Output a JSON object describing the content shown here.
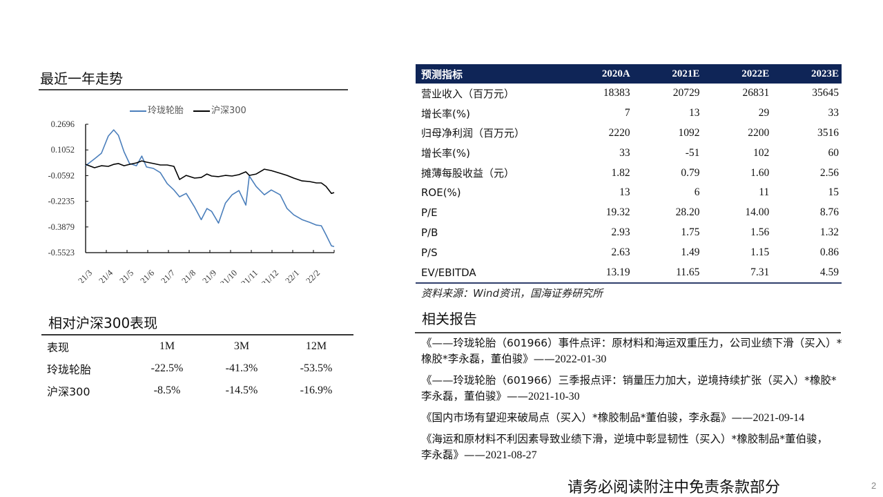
{
  "left": {
    "trend_title": "最近一年走势",
    "legend": [
      {
        "name": "玲珑轮胎",
        "color": "#4a7ebb"
      },
      {
        "name": "沪深300",
        "color": "#000000"
      }
    ],
    "perf_title": "相对沪深300表现",
    "perf_table": {
      "headers": [
        "表现",
        "1M",
        "3M",
        "12M"
      ],
      "rows": [
        {
          "label": "玲珑轮胎",
          "values": [
            "-22.5%",
            "-41.3%",
            "-53.5%"
          ]
        },
        {
          "label": "沪深300",
          "values": [
            "-8.5%",
            "-14.5%",
            "-16.9%"
          ]
        }
      ]
    }
  },
  "chart_data": {
    "type": "line",
    "title": "最近一年走势",
    "xlabel": "",
    "ylabel": "",
    "yticks": [
      0.2696,
      0.1052,
      -0.0592,
      -0.2235,
      -0.3879,
      -0.5523
    ],
    "ylim": [
      -0.5523,
      0.2696
    ],
    "xtick_labels": [
      "21/3",
      "21/4",
      "21/5",
      "21/6",
      "21/7",
      "21/8",
      "21/9",
      "21/10",
      "21/11",
      "21/12",
      "22/1",
      "22/2"
    ],
    "legend_position": "top",
    "grid": false,
    "x": [
      0,
      0.36,
      0.64,
      0.92,
      1.14,
      1.33,
      1.56,
      1.78,
      2.06,
      2.28,
      2.47,
      2.75,
      3.03,
      3.31,
      3.58,
      3.81,
      4.08,
      4.42,
      4.69,
      4.92,
      5.11,
      5.39,
      5.67,
      5.94,
      6.22,
      6.5,
      6.64,
      6.92,
      7.25,
      7.53,
      7.89,
      8.17,
      8.44,
      8.78,
      9.08,
      9.36,
      9.56,
      9.75,
      9.97,
      10.08
    ],
    "series": [
      {
        "name": "玲珑轮胎",
        "color": "#4a7ebb",
        "values": [
          0.004,
          0.048,
          0.084,
          0.194,
          0.234,
          0.199,
          0.093,
          0.018,
          0.004,
          0.066,
          -0.004,
          -0.013,
          -0.04,
          -0.111,
          -0.151,
          -0.195,
          -0.173,
          -0.261,
          -0.341,
          -0.27,
          -0.288,
          -0.363,
          -0.235,
          -0.182,
          -0.155,
          -0.248,
          -0.062,
          -0.129,
          -0.182,
          -0.151,
          -0.182,
          -0.27,
          -0.31,
          -0.341,
          -0.358,
          -0.376,
          -0.38,
          -0.438,
          -0.509,
          -0.513
        ]
      },
      {
        "name": "沪深300",
        "color": "#000000",
        "values": [
          0.013,
          -0.009,
          0.004,
          0.0,
          0.013,
          0.018,
          0.004,
          0.013,
          0.022,
          0.035,
          0.027,
          0.018,
          0.009,
          0.009,
          -0.0,
          -0.084,
          -0.058,
          -0.075,
          -0.071,
          -0.049,
          -0.062,
          -0.066,
          -0.058,
          -0.062,
          -0.053,
          -0.035,
          -0.058,
          -0.049,
          -0.018,
          -0.027,
          -0.044,
          -0.058,
          -0.075,
          -0.093,
          -0.097,
          -0.106,
          -0.106,
          -0.128,
          -0.173,
          -0.168
        ]
      }
    ]
  },
  "forecast": {
    "headers": [
      "预测指标",
      "2020A",
      "2021E",
      "2022E",
      "2023E"
    ],
    "header_bg": "#0f2557",
    "rows": [
      {
        "label": "营业收入（百万元）",
        "values": [
          "18383",
          "20729",
          "26831",
          "35645"
        ]
      },
      {
        "label": "增长率(%)",
        "values": [
          "7",
          "13",
          "29",
          "33"
        ]
      },
      {
        "label": "归母净利润（百万元）",
        "values": [
          "2220",
          "1092",
          "2200",
          "3516"
        ]
      },
      {
        "label": "增长率(%)",
        "values": [
          "33",
          "-51",
          "102",
          "60"
        ]
      },
      {
        "label": "摊薄每股收益（元）",
        "values": [
          "1.82",
          "0.79",
          "1.60",
          "2.56"
        ]
      },
      {
        "label": "ROE(%)",
        "values": [
          "13",
          "6",
          "11",
          "15"
        ]
      },
      {
        "label": "P/E",
        "values": [
          "19.32",
          "28.20",
          "14.00",
          "8.76"
        ]
      },
      {
        "label": "P/B",
        "values": [
          "2.93",
          "1.75",
          "1.56",
          "1.32"
        ]
      },
      {
        "label": "P/S",
        "values": [
          "2.63",
          "1.49",
          "1.15",
          "0.86"
        ]
      },
      {
        "label": "EV/EBITDA",
        "values": [
          "13.19",
          "11.65",
          "7.31",
          "4.59"
        ]
      }
    ],
    "source": "资料来源：Wind资讯，国海证券研究所"
  },
  "related": {
    "title": "相关报告",
    "items": [
      {
        "text": "《——玲珑轮胎（601966）事件点评：原材料和海运双重压力，公司业绩下滑（买入）*橡胶*李永磊，董伯骏》——",
        "date": "2022-01-30"
      },
      {
        "text": "《——玲珑轮胎（601966）三季报点评：销量压力加大，逆境持续扩张（买入）*橡胶*李永磊，董伯骏》——",
        "date": "2021-10-30"
      },
      {
        "text": "《国内市场有望迎来破局点（买入）*橡胶制品*董伯骏，李永磊》——",
        "date": "2021-09-14"
      },
      {
        "text": "《海运和原材料不利因素导致业绩下滑，逆境中彰显韧性（买入）*橡胶制品*董伯骏，李永磊》——",
        "date": "2021-08-27"
      }
    ]
  },
  "footer": {
    "disclaimer": "请务必阅读附注中免责条款部分",
    "page_number": "2"
  }
}
